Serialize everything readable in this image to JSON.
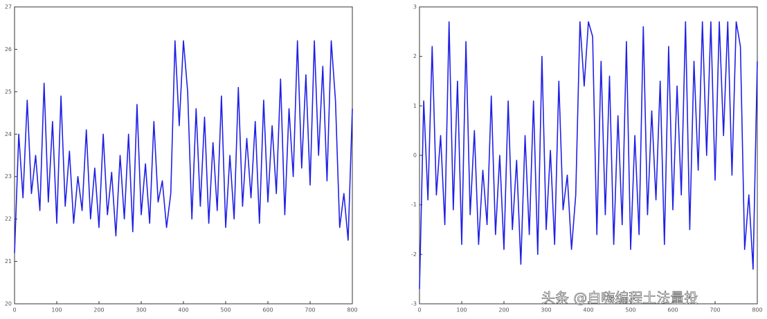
{
  "chart_data": [
    {
      "type": "line",
      "x": [
        0,
        10,
        20,
        30,
        40,
        50,
        60,
        70,
        80,
        90,
        100,
        110,
        120,
        130,
        140,
        150,
        160,
        170,
        180,
        190,
        200,
        210,
        220,
        230,
        240,
        250,
        260,
        270,
        280,
        290,
        300,
        310,
        320,
        330,
        340,
        350,
        360,
        370,
        380,
        390,
        400,
        410,
        420,
        430,
        440,
        450,
        460,
        470,
        480,
        490,
        500,
        510,
        520,
        530,
        540,
        550,
        560,
        570,
        580,
        590,
        600,
        610,
        620,
        630,
        640,
        650,
        660,
        670,
        680,
        690,
        700,
        710,
        720,
        730,
        740,
        750,
        760,
        770,
        780,
        790,
        800
      ],
      "series": [
        {
          "color": "#1f1fe6",
          "values": [
            21.2,
            24.0,
            22.5,
            24.8,
            22.6,
            23.5,
            22.2,
            25.2,
            22.4,
            24.3,
            21.9,
            24.9,
            22.3,
            23.6,
            21.9,
            23.0,
            22.2,
            24.1,
            22.0,
            23.2,
            21.8,
            24.0,
            22.1,
            23.1,
            21.6,
            23.5,
            22.0,
            24.0,
            21.7,
            24.7,
            22.1,
            23.3,
            21.9,
            24.3,
            22.4,
            22.9,
            21.8,
            22.6,
            26.2,
            24.2,
            26.2,
            25.0,
            22.0,
            24.6,
            22.3,
            24.4,
            21.9,
            23.8,
            22.2,
            24.9,
            21.8,
            23.5,
            22.0,
            25.1,
            22.3,
            23.9,
            22.5,
            24.3,
            21.9,
            24.8,
            22.4,
            24.2,
            22.6,
            25.3,
            22.1,
            24.6,
            23.0,
            26.2,
            23.2,
            25.4,
            22.8,
            26.2,
            23.5,
            25.6,
            22.9,
            26.2,
            24.8,
            21.8,
            22.6,
            21.5,
            24.6
          ]
        }
      ],
      "xlim": [
        0,
        800
      ],
      "xticks": [
        0,
        100,
        200,
        300,
        400,
        500,
        600,
        700,
        800
      ],
      "ylim": [
        20,
        27
      ],
      "yticks": [
        20,
        21,
        22,
        23,
        24,
        25,
        26,
        27
      ]
    },
    {
      "type": "line",
      "x": [
        0,
        10,
        20,
        30,
        40,
        50,
        60,
        70,
        80,
        90,
        100,
        110,
        120,
        130,
        140,
        150,
        160,
        170,
        180,
        190,
        200,
        210,
        220,
        230,
        240,
        250,
        260,
        270,
        280,
        290,
        300,
        310,
        320,
        330,
        340,
        350,
        360,
        370,
        380,
        390,
        400,
        410,
        420,
        430,
        440,
        450,
        460,
        470,
        480,
        490,
        500,
        510,
        520,
        530,
        540,
        550,
        560,
        570,
        580,
        590,
        600,
        610,
        620,
        630,
        640,
        650,
        660,
        670,
        680,
        690,
        700,
        710,
        720,
        730,
        740,
        750,
        760,
        770,
        780,
        790,
        800
      ],
      "series": [
        {
          "color": "#1f1fe6",
          "values": [
            -2.7,
            1.1,
            -0.9,
            2.2,
            -0.8,
            0.4,
            -1.4,
            2.7,
            -1.1,
            1.5,
            -1.8,
            2.3,
            -1.2,
            0.5,
            -1.8,
            -0.3,
            -1.4,
            1.2,
            -1.6,
            0,
            -1.9,
            1.1,
            -1.5,
            -0.1,
            -2.2,
            0.4,
            -1.6,
            1.1,
            -2.0,
            2.0,
            -1.5,
            0.1,
            -1.8,
            1.5,
            -1.1,
            -0.4,
            -1.9,
            -0.8,
            2.7,
            1.4,
            2.7,
            2.4,
            -1.6,
            1.9,
            -1.2,
            1.6,
            -1.8,
            0.8,
            -1.4,
            2.3,
            -1.9,
            0.4,
            -1.6,
            2.6,
            -1.2,
            0.9,
            -0.9,
            1.5,
            -1.8,
            2.2,
            -1.1,
            1.4,
            -0.8,
            2.7,
            -1.5,
            1.9,
            -0.3,
            2.7,
            0,
            2.7,
            -0.5,
            2.7,
            0.4,
            2.7,
            -0.4,
            2.7,
            2.2,
            -1.9,
            -0.8,
            -2.3,
            1.9
          ]
        }
      ],
      "xlim": [
        0,
        800
      ],
      "xticks": [
        0,
        100,
        200,
        300,
        400,
        500,
        600,
        700,
        800
      ],
      "ylim": [
        -3,
        3
      ],
      "yticks": [
        -3,
        -2,
        -1,
        0,
        1,
        2,
        3
      ]
    }
  ],
  "watermark": "头条 @自嗨编程土法量投"
}
